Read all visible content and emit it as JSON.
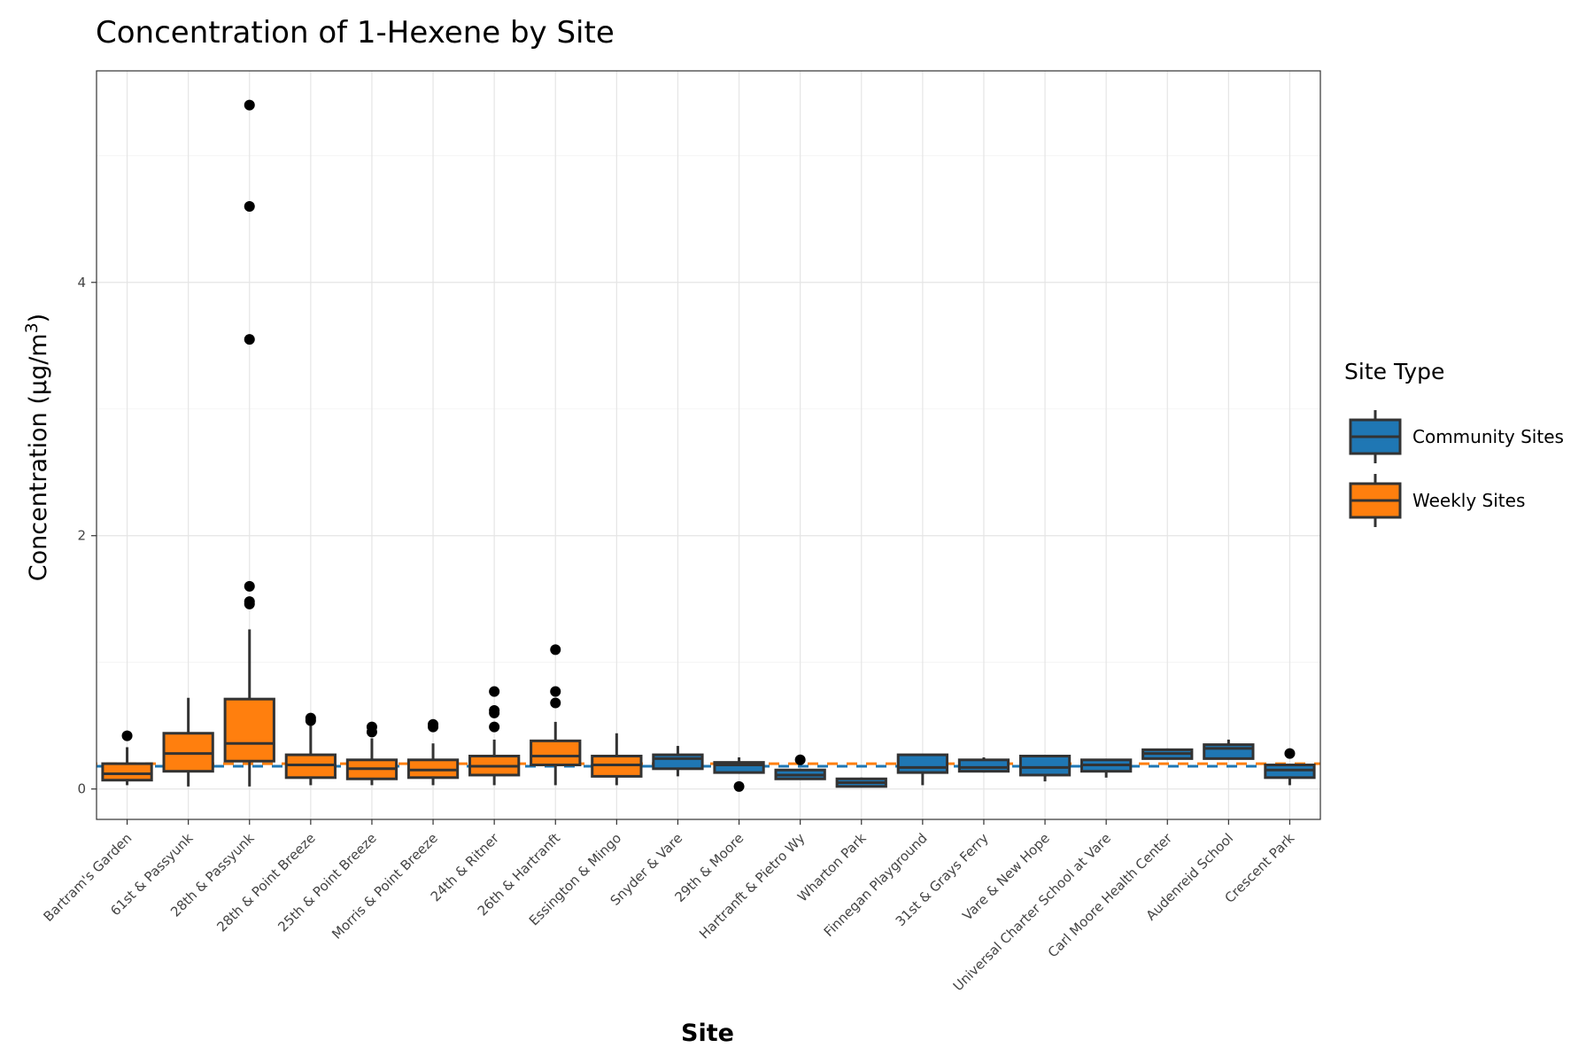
{
  "chart_data": {
    "type": "box",
    "title": "Concentration of 1-Hexene by Site",
    "xlabel": "Site",
    "ylabel_main": "Concentration (μg/m",
    "ylabel_sup": "3",
    "ylabel_close": ")",
    "ylim": [
      -0.24,
      5.67
    ],
    "yticks": [
      0,
      2,
      4
    ],
    "grid": true,
    "legend": {
      "title": "Site Type",
      "position": "right",
      "entries": [
        {
          "label": "Community Sites",
          "color": "#1f77b4"
        },
        {
          "label": "Weekly Sites",
          "color": "#ff7f0e"
        }
      ]
    },
    "reference_lines": [
      {
        "series": "Community Sites",
        "value": 0.18,
        "color": "#1f77b4",
        "style": "dashed"
      },
      {
        "series": "Weekly Sites",
        "value": 0.2,
        "color": "#ff7f0e",
        "style": "dashed"
      }
    ],
    "colors": {
      "community": "#1f77b4",
      "weekly": "#ff7f0e",
      "box_outline": "#333333",
      "grid": "#e5e5e5",
      "panel_border": "#333333"
    },
    "categories": [
      "Bartram's Garden",
      "61st & Passyunk",
      "28th & Passyunk",
      "28th & Point Breeze",
      "25th & Point Breeze",
      "Morris & Point Breeze",
      "24th & Ritner",
      "26th & Hartranft",
      "Essington & Mingo",
      "Snyder & Vare",
      "29th & Moore",
      "Hartranft & Pietro Wy",
      "Wharton Park",
      "Finnegan Playground",
      "31st & Grays Ferry",
      "Vare & New Hope",
      "Universal Charter School at Vare",
      "Carl Moore Health Center",
      "Audenreid School",
      "Crescent Park"
    ],
    "boxes": [
      {
        "site": "Bartram's Garden",
        "type": "Weekly Sites",
        "min": 0.03,
        "q1": 0.07,
        "median": 0.12,
        "q3": 0.2,
        "max": 0.33,
        "outliers": [
          0.42
        ]
      },
      {
        "site": "61st & Passyunk",
        "type": "Weekly Sites",
        "min": 0.02,
        "q1": 0.14,
        "median": 0.28,
        "q3": 0.44,
        "max": 0.72,
        "outliers": []
      },
      {
        "site": "28th & Passyunk",
        "type": "Weekly Sites",
        "min": 0.02,
        "q1": 0.22,
        "median": 0.36,
        "q3": 0.71,
        "max": 1.26,
        "outliers": [
          1.46,
          1.48,
          1.6,
          3.55,
          4.6,
          5.4
        ]
      },
      {
        "site": "28th & Point Breeze",
        "type": "Weekly Sites",
        "min": 0.03,
        "q1": 0.09,
        "median": 0.19,
        "q3": 0.27,
        "max": 0.5,
        "outliers": [
          0.54,
          0.56
        ]
      },
      {
        "site": "25th & Point Breeze",
        "type": "Weekly Sites",
        "min": 0.03,
        "q1": 0.08,
        "median": 0.16,
        "q3": 0.23,
        "max": 0.4,
        "outliers": [
          0.45,
          0.49
        ]
      },
      {
        "site": "Morris & Point Breeze",
        "type": "Weekly Sites",
        "min": 0.03,
        "q1": 0.09,
        "median": 0.15,
        "q3": 0.23,
        "max": 0.36,
        "outliers": [
          0.49,
          0.51
        ]
      },
      {
        "site": "24th & Ritner",
        "type": "Weekly Sites",
        "min": 0.03,
        "q1": 0.11,
        "median": 0.18,
        "q3": 0.26,
        "max": 0.39,
        "outliers": [
          0.49,
          0.6,
          0.62,
          0.77
        ]
      },
      {
        "site": "26th & Hartranft",
        "type": "Weekly Sites",
        "min": 0.03,
        "q1": 0.19,
        "median": 0.26,
        "q3": 0.38,
        "max": 0.53,
        "outliers": [
          0.68,
          0.77,
          1.1
        ]
      },
      {
        "site": "Essington & Mingo",
        "type": "Weekly Sites",
        "min": 0.03,
        "q1": 0.1,
        "median": 0.19,
        "q3": 0.26,
        "max": 0.44,
        "outliers": []
      },
      {
        "site": "Snyder & Vare",
        "type": "Community Sites",
        "min": 0.1,
        "q1": 0.16,
        "median": 0.24,
        "q3": 0.27,
        "max": 0.34,
        "outliers": []
      },
      {
        "site": "29th & Moore",
        "type": "Community Sites",
        "min": 0.12,
        "q1": 0.13,
        "median": 0.19,
        "q3": 0.21,
        "max": 0.25,
        "outliers": [
          0.02
        ]
      },
      {
        "site": "Hartranft & Pietro Wy",
        "type": "Community Sites",
        "min": 0.08,
        "q1": 0.08,
        "median": 0.11,
        "q3": 0.15,
        "max": 0.16,
        "outliers": [
          0.23
        ]
      },
      {
        "site": "Wharton Park",
        "type": "Community Sites",
        "min": 0.02,
        "q1": 0.02,
        "median": 0.05,
        "q3": 0.08,
        "max": 0.09,
        "outliers": []
      },
      {
        "site": "Finnegan Playground",
        "type": "Community Sites",
        "min": 0.03,
        "q1": 0.13,
        "median": 0.17,
        "q3": 0.27,
        "max": 0.27,
        "outliers": []
      },
      {
        "site": "31st & Grays Ferry",
        "type": "Community Sites",
        "min": 0.13,
        "q1": 0.14,
        "median": 0.17,
        "q3": 0.23,
        "max": 0.25,
        "outliers": []
      },
      {
        "site": "Vare & New Hope",
        "type": "Community Sites",
        "min": 0.06,
        "q1": 0.11,
        "median": 0.17,
        "q3": 0.26,
        "max": 0.26,
        "outliers": []
      },
      {
        "site": "Universal Charter School at Vare",
        "type": "Community Sites",
        "min": 0.09,
        "q1": 0.14,
        "median": 0.19,
        "q3": 0.23,
        "max": 0.23,
        "outliers": []
      },
      {
        "site": "Carl Moore Health Center",
        "type": "Community Sites",
        "min": 0.24,
        "q1": 0.24,
        "median": 0.28,
        "q3": 0.31,
        "max": 0.32,
        "outliers": []
      },
      {
        "site": "Audenreid School",
        "type": "Community Sites",
        "min": 0.24,
        "q1": 0.24,
        "median": 0.32,
        "q3": 0.35,
        "max": 0.39,
        "outliers": []
      },
      {
        "site": "Crescent Park",
        "type": "Community Sites",
        "min": 0.03,
        "q1": 0.09,
        "median": 0.15,
        "q3": 0.19,
        "max": 0.19,
        "outliers": [
          0.28
        ]
      }
    ]
  }
}
